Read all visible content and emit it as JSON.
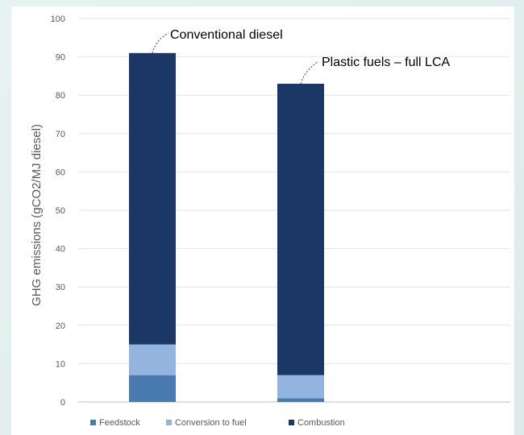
{
  "chart_data": {
    "type": "bar",
    "stacked": true,
    "categories": [
      "Conventional diesel",
      "Plastic fuels – full LCA"
    ],
    "series": [
      {
        "name": "Feedstock",
        "color": "#4a7bb0",
        "values": [
          7,
          1
        ]
      },
      {
        "name": "Conversion to fuel",
        "color": "#92b4de",
        "values": [
          8,
          6
        ]
      },
      {
        "name": "Combustion",
        "color": "#1b3766",
        "values": [
          76,
          76
        ]
      }
    ],
    "annotations": [
      "Conventional diesel",
      "Plastic fuels – full LCA"
    ],
    "ylabel": "GHG emissions (gCO2/MJ diesel)",
    "xlabel": "",
    "ylim": [
      0,
      100
    ],
    "yticks": [
      0,
      10,
      20,
      30,
      40,
      50,
      60,
      70,
      80,
      90,
      100
    ],
    "grid": true,
    "legend": "bottom"
  }
}
